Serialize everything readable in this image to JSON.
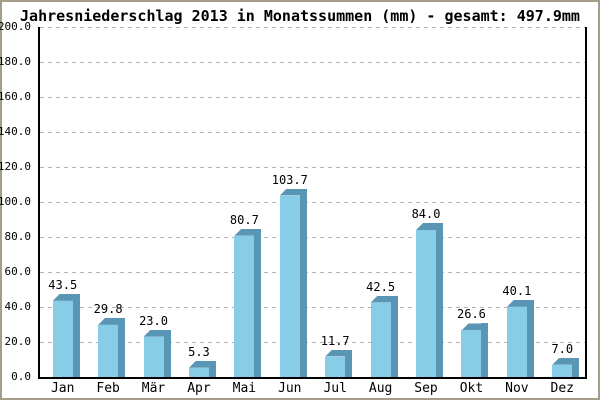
{
  "title": "Jahresniederschlag 2013 in Monatssummen (mm) - gesamt: 497.9mm",
  "total_mm": "497.9",
  "year": "2013",
  "chart_data": {
    "type": "bar",
    "title": "Jahresniederschlag 2013 in Monatssummen (mm) - gesamt: 497.9mm",
    "categories": [
      "Jan",
      "Feb",
      "Mär",
      "Apr",
      "Mai",
      "Jun",
      "Jul",
      "Aug",
      "Sep",
      "Okt",
      "Nov",
      "Dez"
    ],
    "values": [
      43.5,
      29.8,
      23.0,
      5.3,
      80.7,
      103.7,
      11.7,
      42.5,
      84.0,
      26.6,
      40.1,
      7.0
    ],
    "value_labels": [
      "43.5",
      "29.8",
      "23.0",
      "5.3",
      "80.7",
      "103.7",
      "11.7",
      "42.5",
      "84.0",
      "26.6",
      "40.1",
      "7.0"
    ],
    "xlabel": "",
    "ylabel": "",
    "ylim": [
      0,
      200
    ],
    "ytick_step": 20,
    "ytick_labels": [
      "0.0",
      "20.0",
      "40.0",
      "60.0",
      "80.0",
      "100.0",
      "120.0",
      "140.0",
      "160.0",
      "180.0",
      "200.0"
    ],
    "grid": "horizontal-dashed",
    "legend": "none",
    "bar_style": "3d",
    "colors": {
      "bar_front": "#87CDE8",
      "bar_shade": "#5996B5",
      "grid": "#b4b4b4",
      "axis": "#000000",
      "background": "#ffffff",
      "frame_border": "#a59c8a",
      "text": "#000000"
    }
  }
}
